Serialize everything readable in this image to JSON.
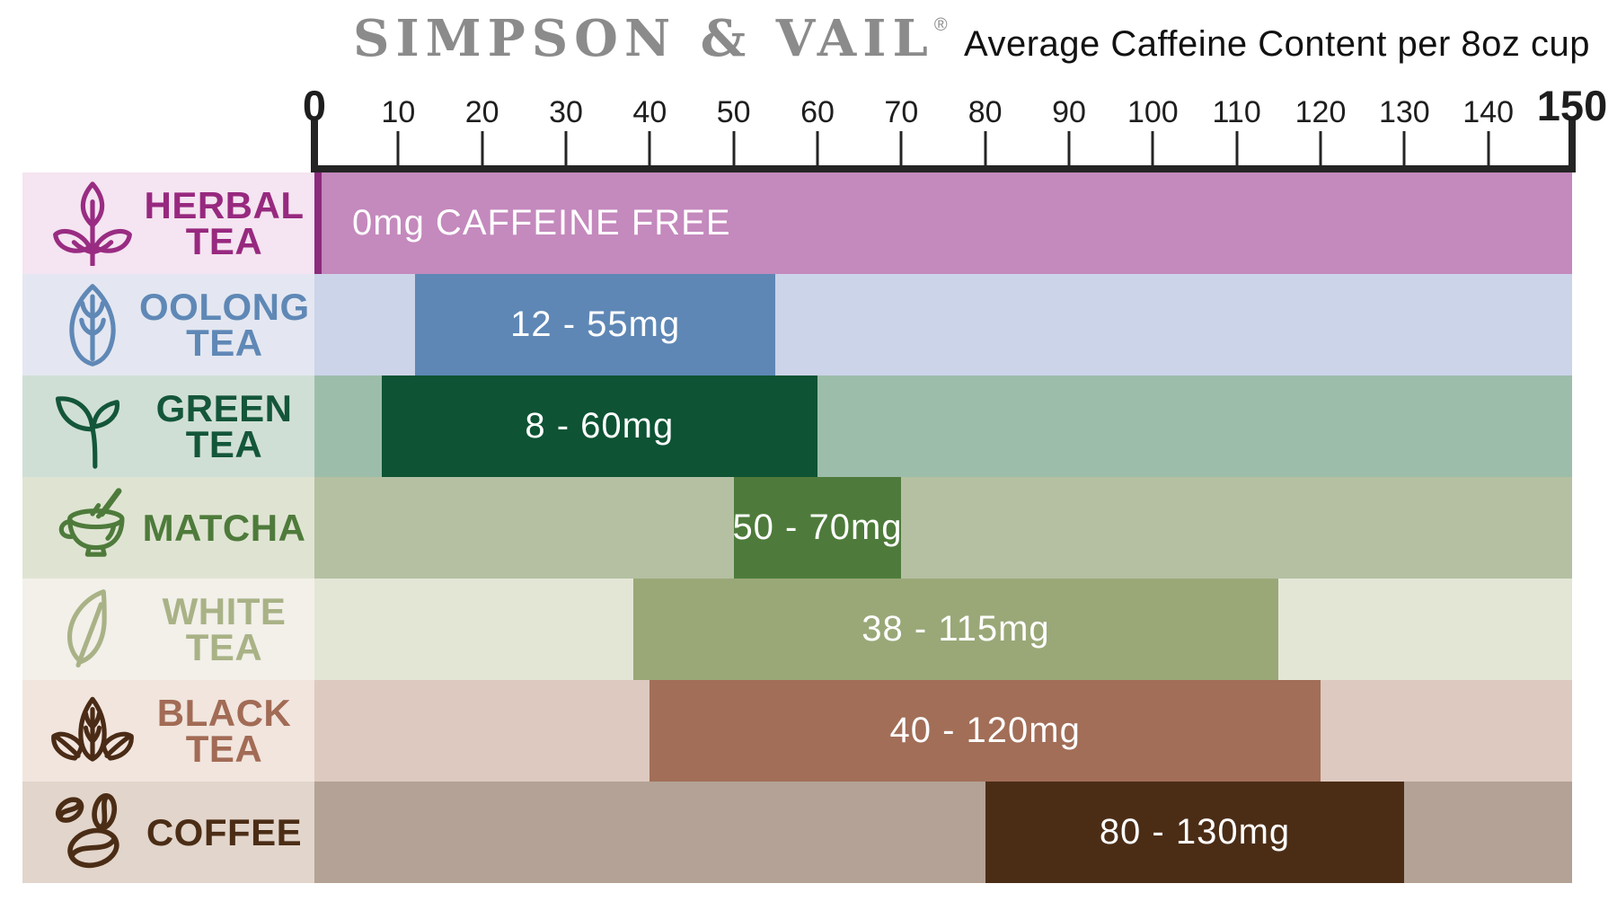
{
  "header": {
    "brand": "SIMPSON & VAIL",
    "registered": "®",
    "subtitle": "Average Caffeine Content per 8oz cup",
    "brand_color": "#8b8b8b",
    "subtitle_color": "#121212"
  },
  "chart_data": {
    "type": "bar",
    "orientation": "horizontal",
    "title": "Average Caffeine Content per 8oz cup",
    "value_unit": "mg",
    "xlim": [
      0,
      150
    ],
    "x_ticks": [
      0,
      10,
      20,
      30,
      40,
      50,
      60,
      70,
      80,
      90,
      100,
      110,
      120,
      130,
      140,
      150
    ],
    "major_ticks": [
      0,
      150
    ],
    "axis_color": "#242424",
    "grid": false,
    "legend": false,
    "rows": [
      {
        "id": "herbal-tea",
        "label_lines": [
          "HERBAL",
          "TEA"
        ],
        "icon": "herbal-tea-icon",
        "value_min": 0,
        "value_max": 0,
        "bar_start": 0,
        "bar_end": 150,
        "bar_label": "0mg CAFFEINE FREE",
        "bar_label_align": "left",
        "colors": {
          "label_bg": "#f5e4f1",
          "label_text": "#97297f",
          "icon": "#992c82",
          "track": "#c489bd",
          "bar": "#c489bd",
          "bar_text": "#ffffff",
          "zero_line": "#8c2a7c"
        }
      },
      {
        "id": "oolong-tea",
        "label_lines": [
          "OOLONG",
          "TEA"
        ],
        "icon": "oolong-leaf-icon",
        "value_min": 12,
        "value_max": 55,
        "bar_start": 12,
        "bar_end": 55,
        "bar_label": "12 - 55mg",
        "bar_label_align": "center",
        "colors": {
          "label_bg": "#e4e7f1",
          "label_text": "#5f88b6",
          "icon": "#5f88b6",
          "track": "#cbd4e8",
          "bar": "#5e87b5",
          "bar_text": "#ffffff"
        }
      },
      {
        "id": "green-tea",
        "label_lines": [
          "GREEN",
          "TEA"
        ],
        "icon": "green-sprout-icon",
        "value_min": 8,
        "value_max": 60,
        "bar_start": 8,
        "bar_end": 60,
        "bar_label": "8 - 60mg",
        "bar_label_align": "center",
        "colors": {
          "label_bg": "#d0dfd5",
          "label_text": "#14563a",
          "icon": "#14563a",
          "track": "#9dbdab",
          "bar": "#0d5334",
          "bar_text": "#ffffff"
        }
      },
      {
        "id": "matcha",
        "label_lines": [
          "MATCHA"
        ],
        "icon": "matcha-bowl-icon",
        "value_min": 50,
        "value_max": 70,
        "bar_start": 50,
        "bar_end": 70,
        "bar_label": "50 - 70mg",
        "bar_label_align": "center",
        "colors": {
          "label_bg": "#dfe4d2",
          "label_text": "#4e7b3b",
          "icon": "#4e7b3b",
          "track": "#b5c0a3",
          "bar": "#4e7b3b",
          "bar_text": "#ffffff"
        }
      },
      {
        "id": "white-tea",
        "label_lines": [
          "WHITE",
          "TEA"
        ],
        "icon": "white-leaf-icon",
        "value_min": 38,
        "value_max": 115,
        "bar_start": 38,
        "bar_end": 115,
        "bar_label": "38 - 115mg",
        "bar_label_align": "center",
        "colors": {
          "label_bg": "#f2f0e9",
          "label_text": "#a9b286",
          "icon": "#a9b286",
          "track": "#e4e6d5",
          "bar": "#9aa878",
          "bar_text": "#ffffff"
        }
      },
      {
        "id": "black-tea",
        "label_lines": [
          "BLACK",
          "TEA"
        ],
        "icon": "black-leaves-icon",
        "value_min": 40,
        "value_max": 120,
        "bar_start": 40,
        "bar_end": 120,
        "bar_label": "40 - 120mg",
        "bar_label_align": "center",
        "colors": {
          "label_bg": "#f1e5de",
          "label_text": "#a26b55",
          "icon": "#4a2b16",
          "track": "#ddc9c0",
          "bar": "#a26e58",
          "bar_text": "#ffffff"
        }
      },
      {
        "id": "coffee",
        "label_lines": [
          "COFFEE"
        ],
        "icon": "coffee-beans-icon",
        "value_min": 80,
        "value_max": 130,
        "bar_start": 80,
        "bar_end": 130,
        "bar_label": "80 - 130mg",
        "bar_label_align": "center",
        "colors": {
          "label_bg": "#e2d5cb",
          "label_text": "#4b2d16",
          "icon": "#4b2d16",
          "track": "#b3a295",
          "bar": "#4b2d16",
          "bar_text": "#ffffff"
        }
      }
    ]
  }
}
